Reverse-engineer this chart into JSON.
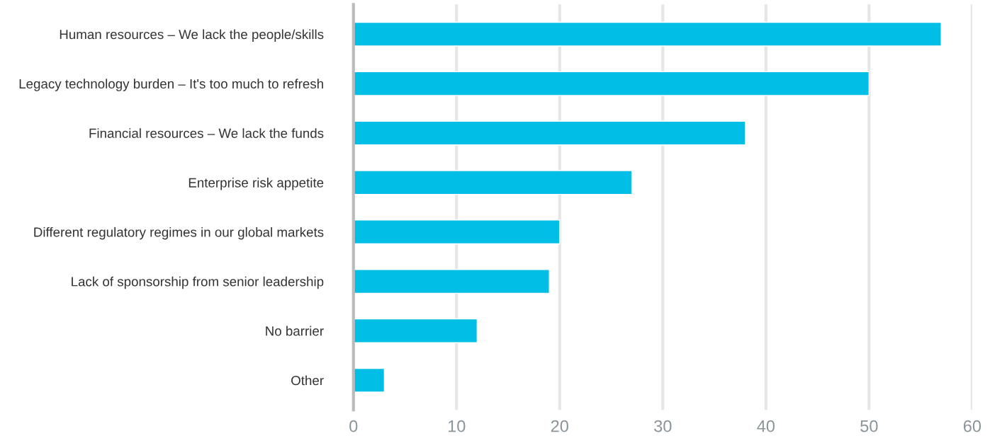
{
  "chart_data": {
    "type": "bar",
    "orientation": "horizontal",
    "categories": [
      "Human resources – We lack the people/skills",
      "Legacy technology burden – It's too much to refresh",
      "Financial resources – We lack the funds",
      "Enterprise risk appetite",
      "Different regulatory regimes in our global markets",
      "Lack of sponsorship from senior leadership",
      "No barrier",
      "Other"
    ],
    "values": [
      57,
      50,
      38,
      27,
      20,
      19,
      12,
      3
    ],
    "color": "#00bee6",
    "xlim": [
      0,
      60
    ],
    "xticks": [
      0,
      10,
      20,
      30,
      40,
      50,
      60
    ],
    "grid": "x",
    "legend": false
  }
}
